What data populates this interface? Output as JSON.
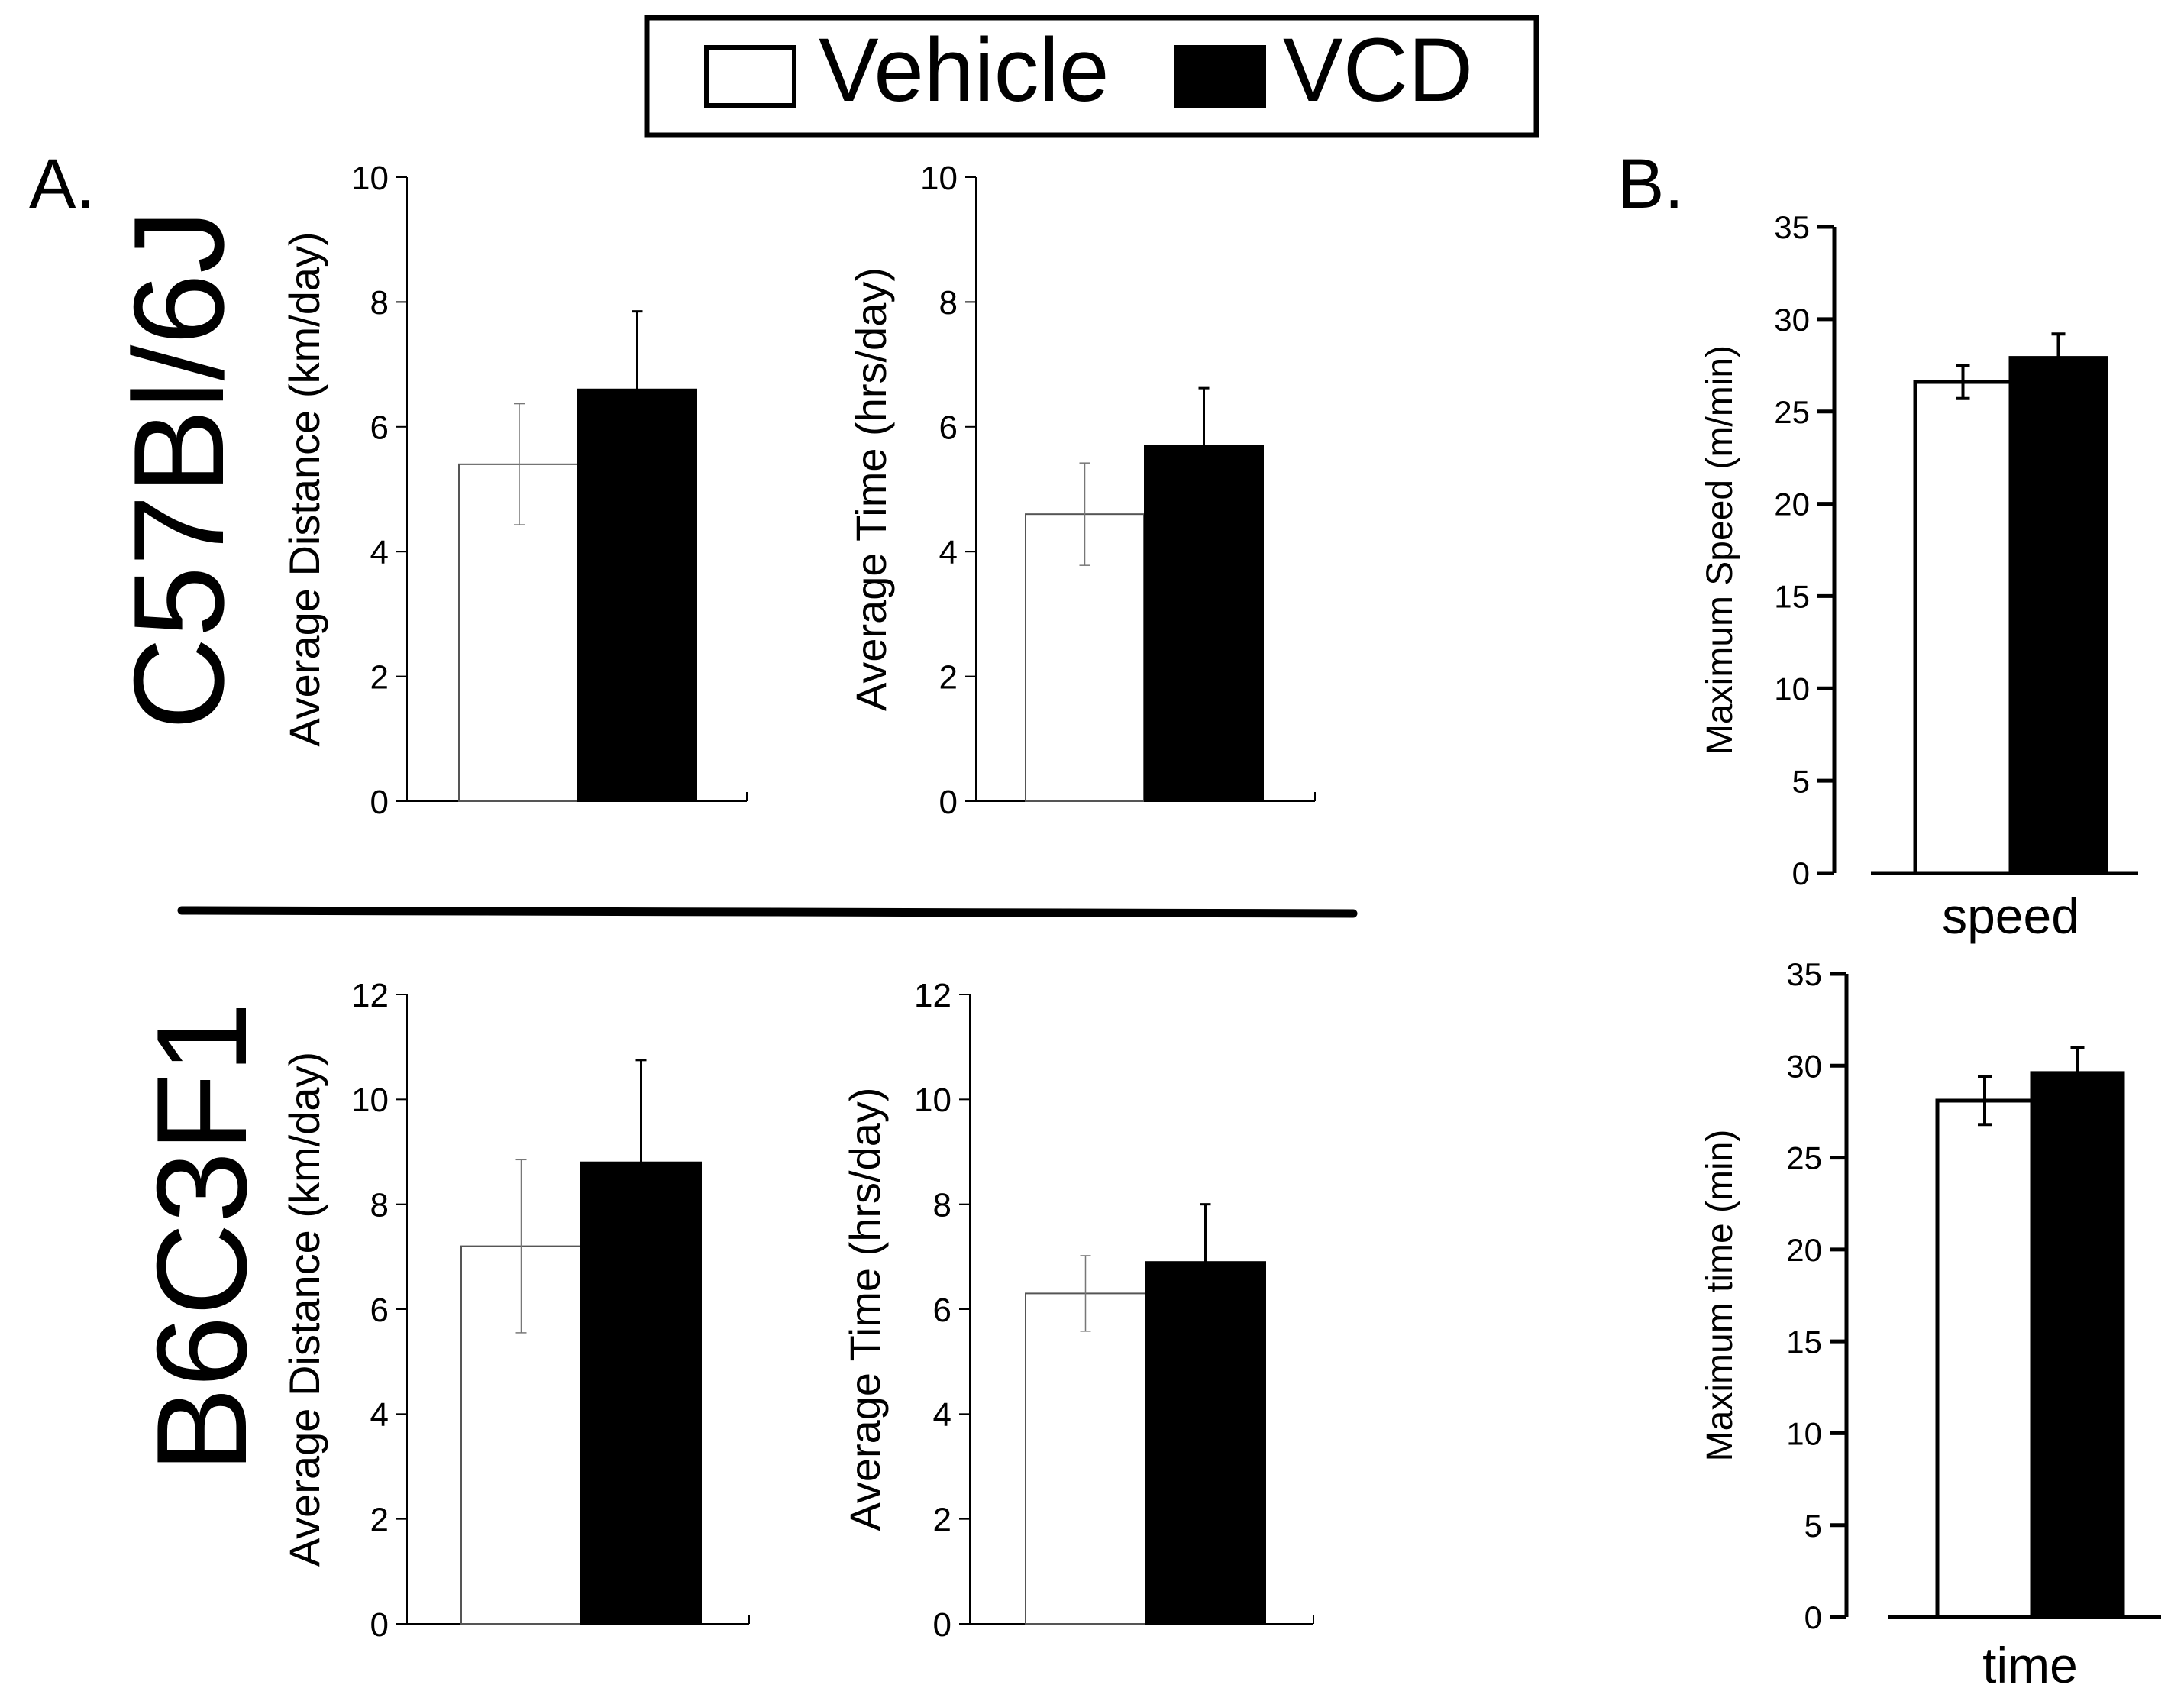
{
  "legend": {
    "items": [
      {
        "label": "Vehicle",
        "color": "#ffffff"
      },
      {
        "label": "VCD",
        "color": "#000000"
      }
    ]
  },
  "panel_labels": {
    "a": "A.",
    "b": "B."
  },
  "strains": {
    "top": "C57Bl/6J",
    "bottom": "B6C3F1"
  },
  "chart_data": [
    {
      "id": "c57-distance",
      "type": "bar",
      "strain": "C57Bl/6J",
      "ylabel": "Average Distance (km/day)",
      "xlabel": "",
      "ylim": [
        0,
        10
      ],
      "yticks": [
        0,
        2,
        4,
        6,
        8,
        10
      ],
      "series": [
        {
          "name": "Vehicle",
          "value": 5.4,
          "error": 0.97
        },
        {
          "name": "VCD",
          "value": 6.6,
          "error": 1.25
        }
      ]
    },
    {
      "id": "c57-time",
      "type": "bar",
      "strain": "C57Bl/6J",
      "ylabel": "Average Time (hrs/day)",
      "xlabel": "",
      "ylim": [
        0,
        10
      ],
      "yticks": [
        0,
        2,
        4,
        6,
        8,
        10
      ],
      "series": [
        {
          "name": "Vehicle",
          "value": 4.6,
          "error": 0.82
        },
        {
          "name": "VCD",
          "value": 5.7,
          "error": 0.92
        }
      ]
    },
    {
      "id": "b6-distance",
      "type": "bar",
      "strain": "B6C3F1",
      "ylabel": "Average Distance (km/day)",
      "xlabel": "",
      "ylim": [
        0,
        12
      ],
      "yticks": [
        0,
        2,
        4,
        6,
        8,
        10,
        12
      ],
      "series": [
        {
          "name": "Vehicle",
          "value": 7.2,
          "error": 1.65
        },
        {
          "name": "VCD",
          "value": 8.8,
          "error": 1.95
        }
      ]
    },
    {
      "id": "b6-time",
      "type": "bar",
      "strain": "B6C3F1",
      "ylabel": "Average Time (hrs/day)",
      "xlabel": "",
      "ylim": [
        0,
        12
      ],
      "yticks": [
        0,
        2,
        4,
        6,
        8,
        10,
        12
      ],
      "series": [
        {
          "name": "Vehicle",
          "value": 6.3,
          "error": 0.72
        },
        {
          "name": "VCD",
          "value": 6.9,
          "error": 1.1
        }
      ]
    },
    {
      "id": "max-speed",
      "type": "bar",
      "ylabel": "Maximum Speed (m/min)",
      "xlabel": "speed",
      "ylim": [
        0,
        35
      ],
      "yticks": [
        0,
        5,
        10,
        15,
        20,
        25,
        30,
        35
      ],
      "series": [
        {
          "name": "Vehicle",
          "value": 26.6,
          "error": 0.9
        },
        {
          "name": "VCD",
          "value": 27.9,
          "error": 1.3
        }
      ]
    },
    {
      "id": "max-time",
      "type": "bar",
      "ylabel": "Maximum time (min)",
      "xlabel": "time",
      "ylim": [
        0,
        35
      ],
      "yticks": [
        0,
        5,
        10,
        15,
        20,
        25,
        30,
        35
      ],
      "series": [
        {
          "name": "Vehicle",
          "value": 28.1,
          "error": 1.3
        },
        {
          "name": "VCD",
          "value": 29.6,
          "error": 1.4
        }
      ]
    }
  ]
}
